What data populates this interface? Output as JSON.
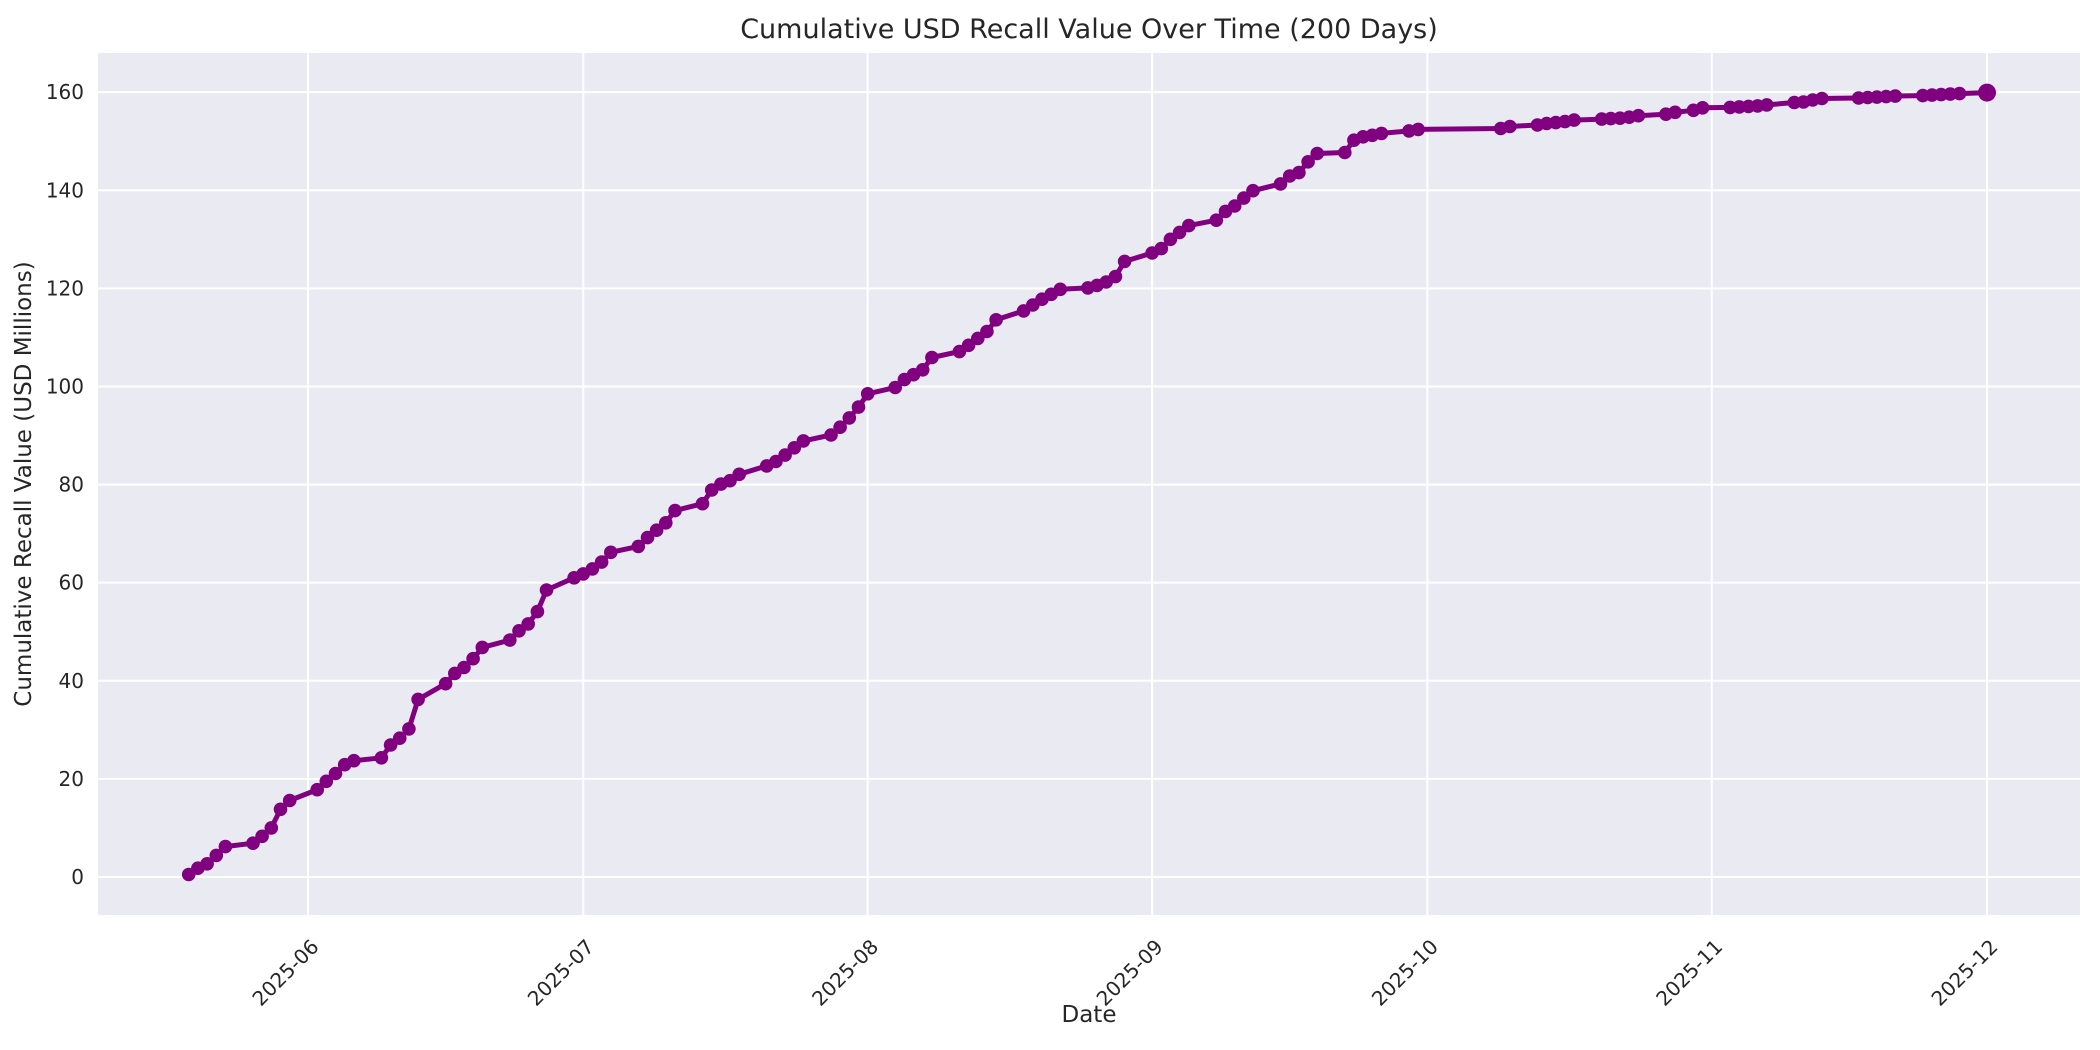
{
  "chart_data": {
    "type": "line",
    "title": "Cumulative USD Recall Value Over Time (200 Days)",
    "xlabel": "Date",
    "ylabel": "Cumulative Recall Value (USD Millions)",
    "legend": null,
    "grid": true,
    "line_color": "#800080",
    "marker": "o",
    "plot_bg": "#eaeaf2",
    "grid_color": "#ffffff",
    "text_color": "#262626",
    "x_tick_labels": [
      "2025-06",
      "2025-07",
      "2025-08",
      "2025-09",
      "2025-10",
      "2025-11",
      "2025-12"
    ],
    "y_ticks": [
      0,
      20,
      40,
      60,
      80,
      100,
      120,
      140,
      160
    ],
    "x_range_dates": [
      "2025-05-19",
      "2025-12-01"
    ],
    "ylim_shown": [
      0,
      160
    ],
    "dates": [
      "2025-05-19",
      "2025-05-20",
      "2025-05-21",
      "2025-05-22",
      "2025-05-23",
      "2025-05-26",
      "2025-05-27",
      "2025-05-28",
      "2025-05-29",
      "2025-05-30",
      "2025-06-02",
      "2025-06-03",
      "2025-06-04",
      "2025-06-05",
      "2025-06-06",
      "2025-06-09",
      "2025-06-10",
      "2025-06-11",
      "2025-06-12",
      "2025-06-13",
      "2025-06-16",
      "2025-06-17",
      "2025-06-18",
      "2025-06-19",
      "2025-06-20",
      "2025-06-23",
      "2025-06-24",
      "2025-06-25",
      "2025-06-26",
      "2025-06-27",
      "2025-06-30",
      "2025-07-01",
      "2025-07-02",
      "2025-07-03",
      "2025-07-04",
      "2025-07-07",
      "2025-07-08",
      "2025-07-09",
      "2025-07-10",
      "2025-07-11",
      "2025-07-14",
      "2025-07-15",
      "2025-07-16",
      "2025-07-17",
      "2025-07-18",
      "2025-07-21",
      "2025-07-22",
      "2025-07-23",
      "2025-07-24",
      "2025-07-25",
      "2025-07-28",
      "2025-07-29",
      "2025-07-30",
      "2025-07-31",
      "2025-08-01",
      "2025-08-04",
      "2025-08-05",
      "2025-08-06",
      "2025-08-07",
      "2025-08-08",
      "2025-08-11",
      "2025-08-12",
      "2025-08-13",
      "2025-08-14",
      "2025-08-15",
      "2025-08-18",
      "2025-08-19",
      "2025-08-20",
      "2025-08-21",
      "2025-08-22",
      "2025-08-25",
      "2025-08-26",
      "2025-08-27",
      "2025-08-28",
      "2025-08-29",
      "2025-09-01",
      "2025-09-02",
      "2025-09-03",
      "2025-09-04",
      "2025-09-05",
      "2025-09-08",
      "2025-09-09",
      "2025-09-10",
      "2025-09-11",
      "2025-09-12",
      "2025-09-15",
      "2025-09-16",
      "2025-09-17",
      "2025-09-18",
      "2025-09-19",
      "2025-09-22",
      "2025-09-23",
      "2025-09-24",
      "2025-09-25",
      "2025-09-26",
      "2025-09-29",
      "2025-09-30",
      "2025-10-09",
      "2025-10-10",
      "2025-10-13",
      "2025-10-14",
      "2025-10-15",
      "2025-10-16",
      "2025-10-17",
      "2025-10-20",
      "2025-10-21",
      "2025-10-22",
      "2025-10-23",
      "2025-10-24",
      "2025-10-27",
      "2025-10-28",
      "2025-10-30",
      "2025-10-31",
      "2025-11-03",
      "2025-11-04",
      "2025-11-05",
      "2025-11-06",
      "2025-11-07",
      "2025-11-10",
      "2025-11-11",
      "2025-11-12",
      "2025-11-13",
      "2025-11-17",
      "2025-11-18",
      "2025-11-19",
      "2025-11-20",
      "2025-11-21",
      "2025-11-24",
      "2025-11-25",
      "2025-11-26",
      "2025-11-27",
      "2025-11-28",
      "2025-12-01"
    ],
    "values": [
      0.5,
      1.8,
      2.7,
      4.4,
      6.2,
      6.9,
      8.3,
      10.0,
      13.8,
      15.6,
      17.8,
      19.5,
      21.1,
      22.9,
      23.7,
      24.3,
      26.9,
      28.3,
      30.2,
      36.2,
      39.4,
      41.5,
      42.7,
      44.5,
      46.8,
      48.3,
      50.2,
      51.6,
      54.1,
      58.5,
      61.0,
      61.8,
      62.8,
      64.2,
      66.2,
      67.4,
      69.2,
      70.7,
      72.2,
      74.7,
      76.1,
      78.9,
      80.1,
      80.8,
      82.1,
      83.8,
      84.7,
      86.0,
      87.5,
      88.9,
      90.1,
      91.7,
      93.6,
      95.8,
      98.5,
      99.8,
      101.4,
      102.4,
      103.4,
      105.9,
      107.1,
      108.4,
      109.8,
      111.2,
      113.6,
      115.4,
      116.6,
      117.8,
      118.8,
      119.8,
      120.1,
      120.6,
      121.3,
      122.4,
      125.5,
      127.2,
      128.1,
      130.0,
      131.4,
      132.8,
      133.9,
      135.7,
      136.8,
      138.4,
      139.9,
      141.3,
      142.9,
      143.6,
      145.8,
      147.5,
      147.7,
      150.2,
      150.9,
      151.2,
      151.6,
      152.1,
      152.4,
      152.6,
      153.0,
      153.3,
      153.6,
      153.8,
      154.0,
      154.3,
      154.5,
      154.6,
      154.7,
      154.9,
      155.2,
      155.5,
      155.9,
      156.3,
      156.8,
      156.9,
      157.0,
      157.1,
      157.2,
      157.4,
      157.9,
      158.0,
      158.4,
      158.7,
      158.8,
      158.9,
      159.0,
      159.1,
      159.2,
      159.3,
      159.4,
      159.5,
      159.6,
      159.7,
      159.9
    ]
  }
}
